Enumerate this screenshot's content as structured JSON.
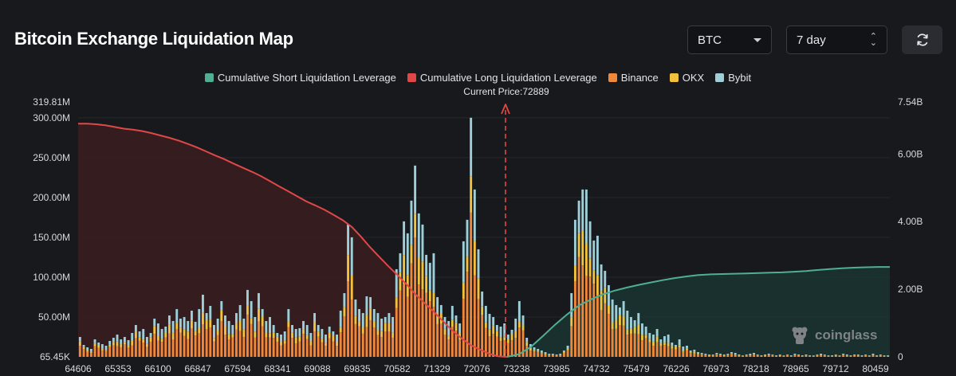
{
  "header": {
    "title": "Bitcoin Exchange Liquidation Map",
    "coin_value": "BTC",
    "range_value": "7 day"
  },
  "colors": {
    "short_line": "#4fae93",
    "long_line": "#e04848",
    "binance": "#f0883a",
    "okx": "#f2c23c",
    "bybit": "#9ecfd8",
    "background": "#18191d"
  },
  "chart_data": {
    "type": "bar",
    "title": "Bitcoin Exchange Liquidation Map",
    "current_price_label": "Current Price:72889",
    "current_price": 72889,
    "legend": [
      {
        "name": "Cumulative Short Liquidation Leverage",
        "color": "#4fae93"
      },
      {
        "name": "Cumulative Long Liquidation Leverage",
        "color": "#e04848"
      },
      {
        "name": "Binance",
        "color": "#f0883a"
      },
      {
        "name": "OKX",
        "color": "#f2c23c"
      },
      {
        "name": "Bybit",
        "color": "#9ecfd8"
      }
    ],
    "x_ticks": [
      "64606",
      "65353",
      "66100",
      "66847",
      "67594",
      "68341",
      "69088",
      "69835",
      "70582",
      "71329",
      "72076",
      "73238",
      "73985",
      "74732",
      "75479",
      "76226",
      "76973",
      "78218",
      "78965",
      "79712",
      "80459"
    ],
    "y_left_ticks": [
      "319.81M",
      "300.00M",
      "250.00M",
      "200.00M",
      "150.00M",
      "100.00M",
      "50.00M",
      "65.45K"
    ],
    "y_left_values": [
      319.81,
      300,
      250,
      200,
      150,
      100,
      50,
      0.065
    ],
    "y_right_ticks": [
      "7.54B",
      "6.00B",
      "4.00B",
      "2.00B",
      "0"
    ],
    "y_right_values": [
      7.54,
      6,
      4,
      2,
      0
    ],
    "ylim_left": [
      0,
      319.81
    ],
    "ylim_right": [
      0,
      7.54
    ],
    "x_range": [
      64606,
      81200
    ],
    "bar_totals_m": [
      25,
      15,
      12,
      10,
      22,
      18,
      16,
      14,
      20,
      24,
      28,
      22,
      25,
      21,
      30,
      40,
      32,
      35,
      25,
      30,
      48,
      42,
      35,
      38,
      52,
      45,
      60,
      48,
      50,
      45,
      58,
      44,
      60,
      78,
      55,
      64,
      40,
      48,
      70,
      52,
      45,
      40,
      55,
      65,
      48,
      84,
      70,
      50,
      80,
      60,
      45,
      50,
      40,
      30,
      28,
      32,
      60,
      40,
      35,
      36,
      45,
      40,
      30,
      55,
      40,
      35,
      28,
      38,
      32,
      28,
      58,
      80,
      166,
      150,
      72,
      60,
      55,
      76,
      75,
      60,
      55,
      48,
      50,
      55,
      50,
      110,
      130,
      170,
      155,
      196,
      240,
      180,
      166,
      128,
      118,
      130,
      75,
      65,
      50,
      45,
      64,
      52,
      42,
      145,
      172,
      300,
      210,
      135,
      82,
      64,
      54,
      50,
      40,
      38,
      42,
      28,
      34,
      48,
      70,
      52,
      24,
      16,
      12,
      10,
      8,
      6,
      4,
      4,
      3,
      4,
      8,
      14,
      80,
      172,
      196,
      210,
      210,
      170,
      146,
      152,
      116,
      108,
      90,
      72,
      65,
      62,
      70,
      58,
      50,
      46,
      55,
      42,
      38,
      30,
      28,
      35,
      22,
      26,
      28,
      18,
      15,
      22,
      13,
      14,
      8,
      9,
      6,
      5,
      4,
      3,
      3,
      5,
      4,
      3,
      4,
      6,
      5,
      3,
      2,
      3,
      4,
      5,
      3,
      2,
      3,
      4,
      3,
      2,
      3,
      2,
      3,
      2,
      4,
      3,
      2,
      3,
      2,
      2,
      3,
      4,
      3,
      2,
      2,
      3,
      2,
      4,
      3,
      2,
      3,
      3,
      2,
      3,
      2,
      4,
      2,
      3,
      2,
      2
    ],
    "long_cumulative_b": [
      6.9,
      6.9,
      6.88,
      6.85,
      6.8,
      6.75,
      6.72,
      6.68,
      6.62,
      6.55,
      6.48,
      6.4,
      6.3,
      6.2,
      6.08,
      5.96,
      5.85,
      5.72,
      5.6,
      5.48,
      5.35,
      5.2,
      5.05,
      4.9,
      4.75,
      4.6,
      4.48,
      4.35,
      4.2,
      4.04,
      3.84,
      3.55,
      3.24,
      2.96,
      2.68,
      2.42,
      2.14,
      1.84,
      1.58,
      1.33,
      1.05,
      0.78,
      0.55,
      0.35,
      0.22,
      0.1,
      0.02,
      0.0
    ],
    "short_cumulative_b": [
      0.0,
      0.08,
      0.3,
      0.62,
      0.95,
      1.25,
      1.52,
      1.7,
      1.85,
      1.96,
      2.05,
      2.13,
      2.2,
      2.27,
      2.33,
      2.38,
      2.42,
      2.44,
      2.45,
      2.46,
      2.47,
      2.48,
      2.49,
      2.5,
      2.52,
      2.54,
      2.57,
      2.6,
      2.62,
      2.64,
      2.65,
      2.66,
      2.66
    ]
  },
  "watermark": "coinglass"
}
